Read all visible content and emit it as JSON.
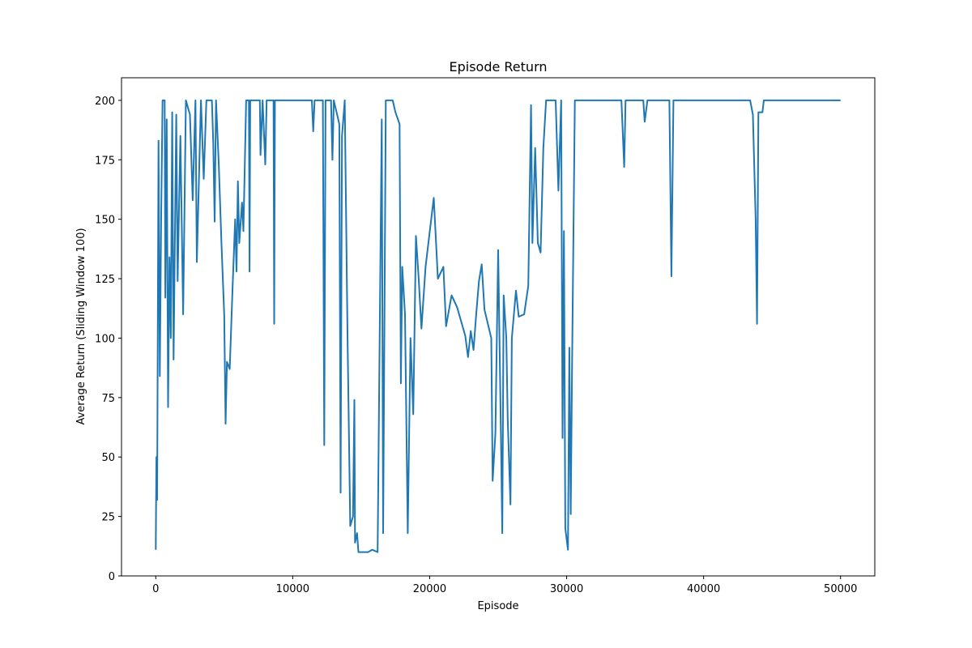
{
  "chart_data": {
    "type": "line",
    "title": "Episode Return",
    "x_label": "Episode",
    "y_label": "Average Return (Sliding Window 100)",
    "xlim": [
      -2500,
      52500
    ],
    "ylim": [
      0,
      209.5
    ],
    "xticks": [
      0,
      10000,
      20000,
      30000,
      40000,
      50000
    ],
    "yticks": [
      0,
      25,
      50,
      75,
      100,
      125,
      150,
      175,
      200
    ],
    "grid": false,
    "x": [
      0,
      50,
      100,
      200,
      300,
      400,
      500,
      650,
      700,
      800,
      900,
      1000,
      1100,
      1200,
      1300,
      1500,
      1600,
      1800,
      2000,
      2200,
      2500,
      2700,
      2900,
      3000,
      3300,
      3500,
      3700,
      4100,
      4200,
      4300,
      4400,
      4600,
      4800,
      5000,
      5100,
      5200,
      5400,
      5600,
      5800,
      5900,
      6000,
      6100,
      6300,
      6400,
      6600,
      6800,
      6850,
      6900,
      7600,
      7650,
      7800,
      8000,
      8100,
      8600,
      8650,
      8700,
      11400,
      11500,
      11600,
      12200,
      12300,
      12400,
      12800,
      12900,
      13000,
      13400,
      13500,
      13600,
      13800,
      14000,
      14200,
      14400,
      14500,
      14550,
      14700,
      14800,
      15500,
      15800,
      16200,
      16500,
      16600,
      16800,
      17300,
      17500,
      17800,
      17900,
      18000,
      18200,
      18400,
      18600,
      18800,
      19000,
      19200,
      19400,
      19700,
      20300,
      20600,
      21000,
      21200,
      21600,
      22000,
      22600,
      22800,
      23000,
      23200,
      23400,
      23600,
      23800,
      24000,
      24500,
      24600,
      24800,
      25000,
      25200,
      25300,
      25400,
      25600,
      25700,
      25900,
      26000,
      26300,
      26500,
      26900,
      27200,
      27400,
      27500,
      27700,
      27900,
      28100,
      28300,
      28500,
      29200,
      29400,
      29600,
      29700,
      29800,
      29900,
      30100,
      30200,
      30300,
      30400,
      30600,
      34000,
      34200,
      34300,
      35600,
      35700,
      35900,
      37500,
      37650,
      37800,
      43400,
      43600,
      43800,
      43900,
      44000,
      44300,
      44400,
      50000
    ],
    "series": [
      {
        "name": "Average Return",
        "color": "#1f77b4",
        "values": [
          11,
          50,
          32,
          183,
          84,
          152,
          200,
          200,
          117,
          192,
          71,
          134,
          100,
          195,
          91,
          194,
          124,
          185,
          110,
          200,
          194,
          158,
          200,
          132,
          200,
          167,
          200,
          200,
          182,
          149,
          200,
          173,
          140,
          110,
          64,
          90,
          87,
          120,
          150,
          128,
          166,
          140,
          157,
          145,
          200,
          200,
          128,
          200,
          200,
          177,
          200,
          173,
          200,
          200,
          106,
          200,
          200,
          187,
          200,
          200,
          55,
          200,
          200,
          175,
          200,
          190,
          35,
          185,
          200,
          102,
          21,
          25,
          74,
          14,
          18,
          10,
          10,
          11,
          10,
          192,
          18,
          200,
          200,
          195,
          190,
          81,
          130,
          110,
          18,
          100,
          68,
          143,
          125,
          104,
          130,
          159,
          125,
          130,
          105,
          118,
          113,
          101,
          92,
          103,
          95,
          110,
          124,
          131,
          112,
          100,
          40,
          60,
          137,
          60,
          18,
          118,
          100,
          66,
          30,
          100,
          120,
          109,
          110,
          122,
          198,
          140,
          180,
          140,
          136,
          180,
          200,
          200,
          162,
          200,
          58,
          145,
          20,
          11,
          96,
          26,
          90,
          200,
          200,
          172,
          200,
          200,
          191,
          200,
          200,
          126,
          200,
          200,
          194,
          150,
          106,
          195,
          195,
          200,
          200
        ]
      }
    ]
  }
}
